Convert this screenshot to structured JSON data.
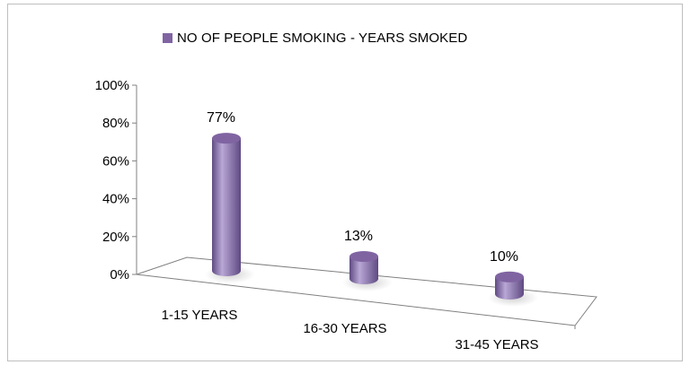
{
  "chart_data": {
    "type": "bar",
    "style": "3d-cylinder",
    "categories": [
      "1-15 YEARS",
      "16-30 YEARS",
      "31-45 YEARS"
    ],
    "series": [
      {
        "name": "NO OF PEOPLE SMOKING - YEARS SMOKED",
        "values": [
          77,
          13,
          10
        ]
      }
    ],
    "data_labels": [
      "77%",
      "13%",
      "10%"
    ],
    "y_ticks": [
      "0%",
      "20%",
      "40%",
      "60%",
      "80%",
      "100%"
    ],
    "ylim": [
      0,
      100
    ],
    "legend_position": "top",
    "grid": false,
    "colors": {
      "bar": "#8064a2",
      "bar_dark": "#5f4a82",
      "bar_light": "#b9a7d6",
      "axis": "#808080"
    }
  }
}
